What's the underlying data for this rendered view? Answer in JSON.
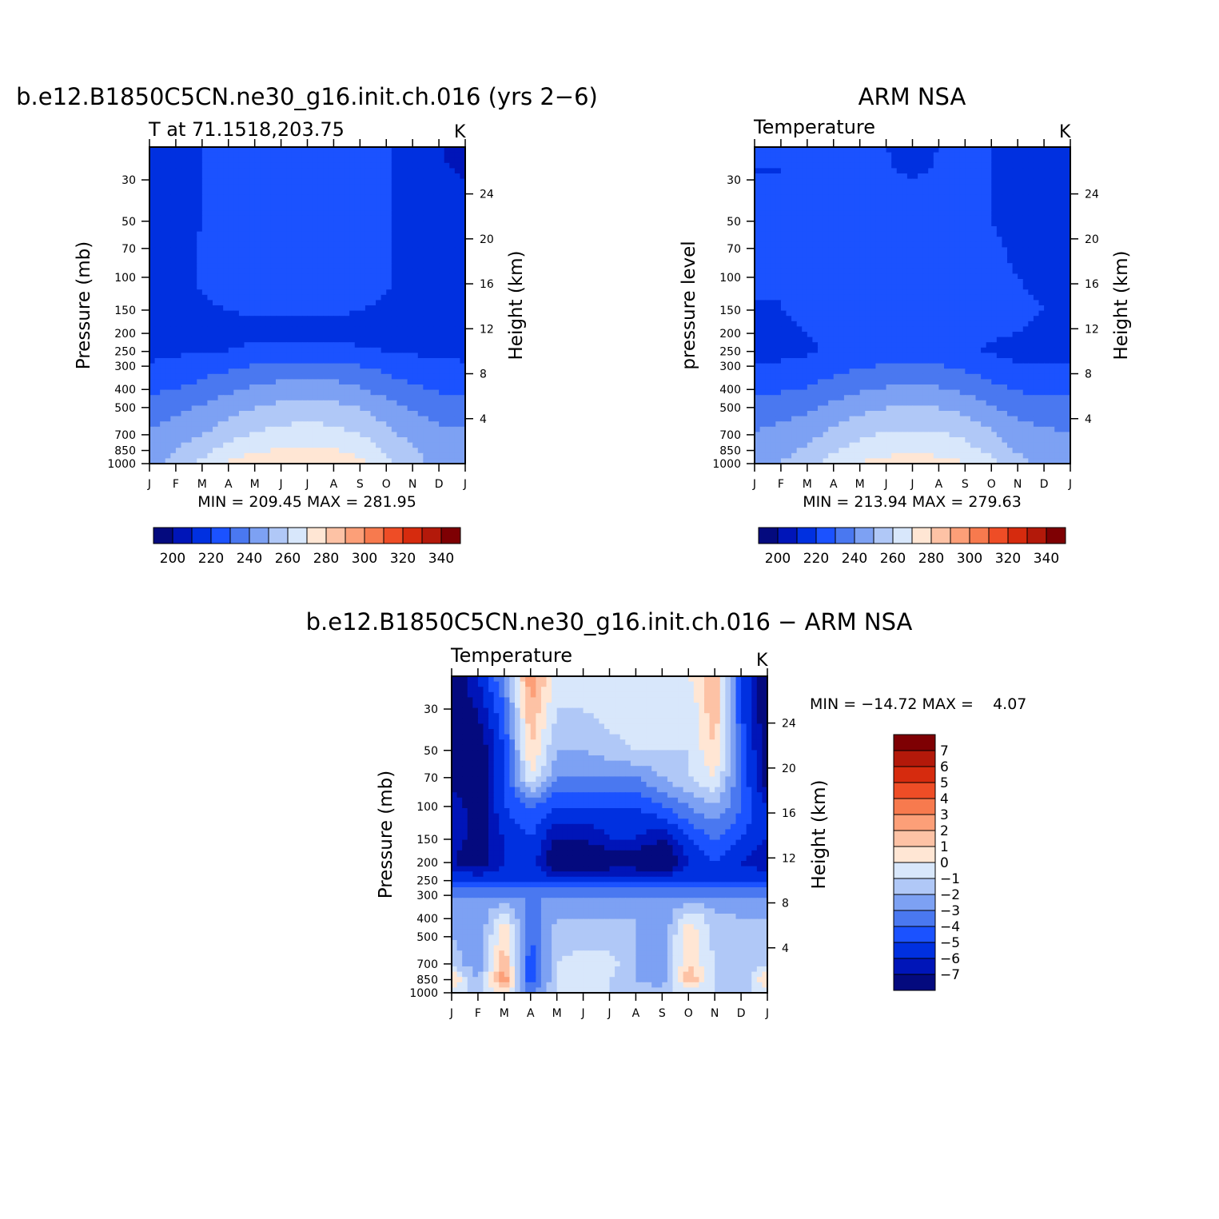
{
  "chart_data": [
    {
      "type": "heatmap",
      "title": "b.e12.B1850C5CN.ne30_g16.init.ch.016 (yrs 2−6)",
      "subtitle_left": "T at 71.1518,203.75",
      "units": "K",
      "ylabel": "Pressure (mb)",
      "ylabel_right": "Height (km)",
      "x_ticks": [
        "J",
        "F",
        "M",
        "A",
        "M",
        "J",
        "J",
        "A",
        "S",
        "O",
        "N",
        "D",
        "J"
      ],
      "y_ticks": [
        30,
        50,
        70,
        100,
        150,
        200,
        250,
        300,
        400,
        500,
        700,
        850,
        1000
      ],
      "y_range": [
        20,
        1000
      ],
      "y_scale": "log",
      "height_ticks": [
        24,
        20,
        16,
        12,
        8,
        4
      ],
      "stats": "MIN = 209.45 MAX = 281.95",
      "x": [
        0,
        1,
        2,
        3,
        4,
        5,
        6,
        7,
        8,
        9,
        10,
        11,
        12
      ],
      "levels": [
        1000,
        850,
        700,
        500,
        400,
        300,
        250,
        200,
        150,
        100,
        70,
        50,
        30,
        20
      ],
      "values": [
        [
          251,
          259,
          267,
          276,
          280,
          281,
          282,
          281,
          277,
          268,
          259,
          252,
          251
        ],
        [
          249,
          255,
          262,
          269,
          274,
          276,
          277,
          276,
          272,
          264,
          256,
          250,
          249
        ],
        [
          247,
          250,
          255,
          261,
          266,
          269,
          270,
          269,
          265,
          258,
          252,
          248,
          247
        ],
        [
          239,
          242,
          246,
          251,
          255,
          258,
          259,
          258,
          255,
          249,
          244,
          240,
          239
        ],
        [
          233,
          235,
          239,
          243,
          247,
          249,
          250,
          249,
          246,
          241,
          237,
          234,
          233
        ],
        [
          226,
          227,
          230,
          233,
          236,
          238,
          239,
          238,
          235,
          232,
          229,
          227,
          226
        ],
        [
          223,
          224,
          224,
          225,
          227,
          227,
          228,
          227,
          226,
          225,
          224,
          223,
          223
        ],
        [
          221,
          222,
          223,
          223,
          223,
          223,
          223,
          223,
          223,
          223,
          222,
          221,
          221
        ],
        [
          220,
          222,
          224,
          225,
          226,
          226,
          226,
          226,
          225,
          224,
          222,
          221,
          220
        ],
        [
          219,
          222,
          226,
          228,
          229,
          229,
          229,
          229,
          228,
          226,
          222,
          220,
          219
        ],
        [
          218,
          221,
          226,
          228,
          229,
          229,
          229,
          229,
          228,
          226,
          222,
          219,
          218
        ],
        [
          217,
          221,
          225,
          227,
          228,
          228,
          228,
          228,
          227,
          226,
          222,
          218,
          217
        ],
        [
          216,
          221,
          225,
          227,
          228,
          228,
          228,
          228,
          227,
          226,
          222,
          217,
          215
        ],
        [
          215,
          221,
          225,
          227,
          228,
          228,
          228,
          228,
          227,
          226,
          222,
          216,
          209
        ]
      ],
      "contour_levels": [
        195,
        205,
        215,
        225,
        235,
        245,
        255,
        265,
        275,
        285,
        295,
        305,
        315,
        325,
        335,
        345
      ],
      "colorbar_labels": [
        "200",
        "220",
        "240",
        "260",
        "280",
        "300",
        "320",
        "340"
      ]
    },
    {
      "type": "heatmap",
      "title": "ARM NSA",
      "subtitle_left": "Temperature",
      "units": "K",
      "ylabel": "pressure level",
      "ylabel_right": "Height (km)",
      "x_ticks": [
        "J",
        "F",
        "M",
        "A",
        "M",
        "J",
        "J",
        "A",
        "S",
        "O",
        "N",
        "D",
        "J"
      ],
      "y_ticks": [
        30,
        50,
        70,
        100,
        150,
        200,
        250,
        300,
        400,
        500,
        700,
        850,
        1000
      ],
      "y_range": [
        20,
        1000
      ],
      "y_scale": "log",
      "height_ticks": [
        24,
        20,
        16,
        12,
        8,
        4
      ],
      "stats": "MIN = 213.94 MAX = 279.63",
      "x": [
        0,
        1,
        2,
        3,
        4,
        5,
        6,
        7,
        8,
        9,
        10,
        11,
        12
      ],
      "levels": [
        1000,
        850,
        700,
        500,
        400,
        300,
        250,
        200,
        150,
        100,
        70,
        50,
        30,
        20
      ],
      "values": [
        [
          250,
          255,
          262,
          270,
          276,
          279,
          280,
          279,
          276,
          268,
          258,
          251,
          250
        ],
        [
          248,
          252,
          257,
          264,
          269,
          272,
          273,
          272,
          269,
          262,
          254,
          249,
          248
        ],
        [
          246,
          249,
          252,
          258,
          263,
          266,
          267,
          266,
          263,
          257,
          250,
          247,
          246
        ],
        [
          238,
          240,
          243,
          248,
          252,
          255,
          256,
          255,
          252,
          246,
          241,
          239,
          238
        ],
        [
          233,
          234,
          236,
          240,
          244,
          246,
          247,
          246,
          243,
          238,
          234,
          233,
          233
        ],
        [
          226,
          226,
          228,
          231,
          234,
          236,
          237,
          236,
          233,
          229,
          226,
          225,
          226
        ],
        [
          222,
          223,
          224,
          226,
          227,
          228,
          228,
          227,
          226,
          224,
          222,
          221,
          222
        ],
        [
          223,
          224,
          225,
          226,
          226,
          226,
          226,
          226,
          226,
          226,
          225,
          224,
          223
        ],
        [
          225,
          225,
          226,
          226,
          226,
          226,
          226,
          226,
          226,
          226,
          226,
          225,
          225
        ],
        [
          225,
          225,
          226,
          226,
          226,
          226,
          226,
          226,
          226,
          226,
          225,
          224,
          225
        ],
        [
          225,
          225,
          226,
          226,
          226,
          226,
          226,
          226,
          226,
          226,
          224,
          224,
          225
        ],
        [
          225,
          225,
          226,
          226,
          226,
          226,
          226,
          226,
          226,
          225,
          223,
          224,
          225
        ],
        [
          225,
          225,
          226,
          226,
          226,
          226,
          226,
          226,
          226,
          225,
          222,
          224,
          225
        ],
        [
          225,
          225,
          226,
          226,
          226,
          226,
          214,
          226,
          226,
          225,
          222,
          224,
          225
        ]
      ],
      "contour_levels": [
        195,
        205,
        215,
        225,
        235,
        245,
        255,
        265,
        275,
        285,
        295,
        305,
        315,
        325,
        335,
        345
      ],
      "colorbar_labels": [
        "200",
        "220",
        "240",
        "260",
        "280",
        "300",
        "320",
        "340"
      ]
    },
    {
      "type": "heatmap",
      "title": "b.e12.B1850C5CN.ne30_g16.init.ch.016 − ARM NSA",
      "subtitle_left": "Temperature",
      "units": "K",
      "ylabel": "Pressure (mb)",
      "ylabel_right": "Height (km)",
      "x_ticks": [
        "J",
        "F",
        "M",
        "A",
        "M",
        "J",
        "J",
        "A",
        "S",
        "O",
        "N",
        "D",
        "J"
      ],
      "y_ticks": [
        30,
        50,
        70,
        100,
        150,
        200,
        250,
        300,
        400,
        500,
        700,
        850,
        1000
      ],
      "y_range": [
        20,
        1000
      ],
      "y_scale": "log",
      "height_ticks": [
        24,
        20,
        16,
        12,
        8,
        4
      ],
      "stats": "MIN = −14.72 MAX =    4.07",
      "x": [
        0,
        1,
        2,
        3,
        4,
        5,
        6,
        7,
        8,
        9,
        10,
        11,
        12
      ],
      "levels": [
        1000,
        850,
        700,
        500,
        400,
        300,
        250,
        200,
        150,
        100,
        70,
        50,
        30,
        20
      ],
      "values": [
        [
          -1,
          -1,
          0,
          -3,
          -1,
          -1,
          -1,
          -1,
          -1,
          -1,
          -1,
          -1,
          -1
        ],
        [
          1,
          -2,
          3,
          -5,
          -1,
          -1,
          -1,
          -2,
          -3,
          2,
          -1,
          -2,
          1
        ],
        [
          -1,
          -3,
          2,
          -5,
          -1,
          -0.5,
          -0.5,
          -2,
          -3,
          1,
          -1,
          -2,
          -1
        ],
        [
          -2,
          -3,
          1,
          -4,
          -1.5,
          -1.5,
          -1.5,
          -2,
          -3,
          1,
          -1.5,
          -2,
          -2
        ],
        [
          -2,
          -3,
          0,
          -4,
          -2,
          -2,
          -2,
          -2,
          -3,
          0,
          -1.5,
          -2,
          -2
        ],
        [
          -3,
          -3,
          -3,
          -3,
          -3,
          -3,
          -3,
          -3,
          -3,
          -3,
          -3,
          -3,
          -3
        ],
        [
          -5,
          -5,
          -5,
          -5,
          -5,
          -5,
          -5,
          -5,
          -5,
          -5,
          -5,
          -5,
          -5
        ],
        [
          -7,
          -8,
          -6,
          -5,
          -9,
          -9,
          -8,
          -8,
          -9,
          -6,
          -5,
          -6,
          -7
        ],
        [
          -6,
          -8,
          -6,
          -5,
          -7,
          -7,
          -6,
          -6,
          -7,
          -5,
          -4,
          -5,
          -6
        ],
        [
          -6,
          -8,
          -5,
          -4,
          -5,
          -5,
          -5,
          -5,
          -4,
          -3,
          -2,
          -4,
          -6
        ],
        [
          -8,
          -8,
          -5,
          0,
          -3,
          -3,
          -3,
          -3,
          -2,
          -1,
          0,
          -4,
          -8
        ],
        [
          -8,
          -8,
          -5,
          1,
          -2,
          -2,
          -1.5,
          -1,
          -1,
          -1,
          1,
          -4,
          -8
        ],
        [
          -8,
          -7,
          -4,
          2,
          -1,
          -1,
          -0.5,
          0,
          -0.5,
          -1,
          2,
          -5,
          -8
        ],
        [
          -8,
          -6,
          -3,
          3,
          -0.5,
          -0.5,
          0,
          0,
          0,
          0,
          2,
          -5,
          -8
        ]
      ],
      "contour_levels": [
        -8,
        -7,
        -6,
        -5,
        -4,
        -3,
        -2,
        -1,
        0,
        1,
        2,
        3,
        4,
        5,
        6,
        7,
        8
      ],
      "colorbar_labels": [
        "7",
        "6",
        "5",
        "4",
        "3",
        "2",
        "1",
        "0",
        "−1",
        "−2",
        "−3",
        "−4",
        "−5",
        "−6",
        "−7"
      ]
    }
  ],
  "palette": {
    "absolute": [
      "#040a7e",
      "#0015b8",
      "#0030e0",
      "#1b52ff",
      "#4a78f0",
      "#7da1f3",
      "#b0c8f7",
      "#d8e7fb",
      "#ffe6d4",
      "#fdc2a5",
      "#fc9f78",
      "#f77a4e",
      "#ee4d26",
      "#d62b0e",
      "#b3190a",
      "#7e0003"
    ],
    "difference": [
      "#040a7e",
      "#0015b8",
      "#0030e0",
      "#1b52ff",
      "#4a78f0",
      "#7da1f3",
      "#b0c8f7",
      "#d8e7fb",
      "#ffe6d4",
      "#fdc2a5",
      "#fc9f78",
      "#f77a4e",
      "#ee4d26",
      "#d62b0e",
      "#b3190a",
      "#7e0003"
    ]
  }
}
